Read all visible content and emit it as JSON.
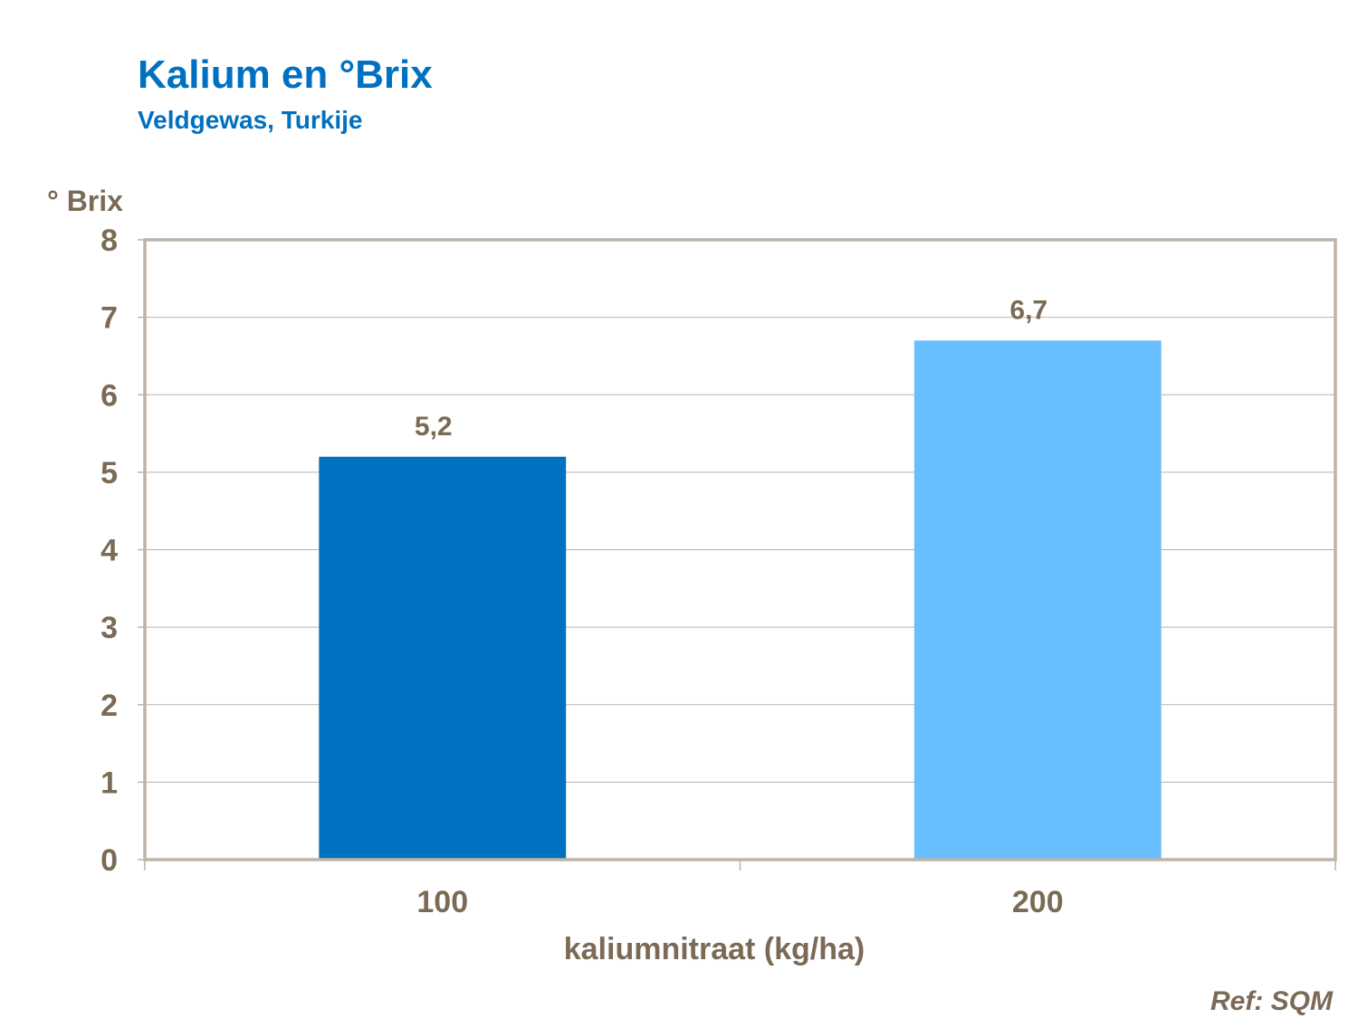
{
  "chart_data": {
    "type": "bar",
    "title": "Kalium en °Brix",
    "subtitle": "Veldgewas, Turkije",
    "xlabel": "kaliumnitraat (kg/ha)",
    "ylabel": "° Brix",
    "categories": [
      "100",
      "200"
    ],
    "values": [
      5.2,
      6.7
    ],
    "value_labels": [
      "5,2",
      "6,7"
    ],
    "bar_colors": [
      "#0070C0",
      "#69BEFF"
    ],
    "ylim": [
      0,
      8
    ],
    "yticks": [
      "0",
      "1",
      "2",
      "3",
      "4",
      "5",
      "6",
      "7",
      "8"
    ],
    "grid": true,
    "legend": "none",
    "reference": "Ref: SQM",
    "colors": {
      "title": "#0070C0",
      "text": "#7B6A55",
      "axis": "#BDB3A8",
      "grid": "#BDB3A8"
    }
  }
}
